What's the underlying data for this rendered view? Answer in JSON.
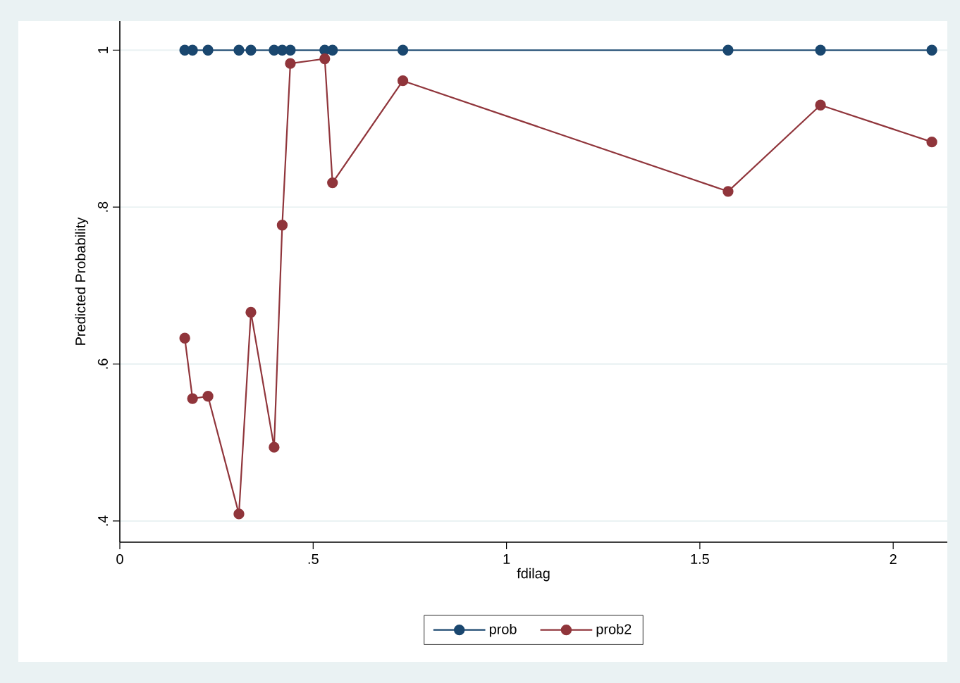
{
  "chart_data": {
    "type": "line",
    "xlabel": "fdilag",
    "ylabel": "Predicted Probability",
    "x": [
      0.168,
      0.188,
      0.228,
      0.308,
      0.339,
      0.399,
      0.42,
      0.441,
      0.53,
      0.55,
      0.732,
      1.573,
      1.812,
      2.1
    ],
    "series": [
      {
        "name": "prob",
        "color": "#1a476f",
        "values": [
          1,
          1,
          1,
          1,
          1,
          1,
          1,
          1,
          1,
          1,
          1,
          1,
          1,
          1
        ]
      },
      {
        "name": "prob2",
        "color": "#90353b",
        "values": [
          0.633,
          0.556,
          0.559,
          0.409,
          0.666,
          0.494,
          0.777,
          0.983,
          0.989,
          0.831,
          0.961,
          0.82,
          0.93,
          0.883
        ]
      }
    ],
    "xlim": [
      0,
      2.14
    ],
    "ylim": [
      0.373,
      1.037
    ],
    "xticks": [
      0,
      {
        "value": 0.5,
        "label": ".5"
      },
      1,
      1.5,
      2
    ],
    "yticks": [
      {
        "value": 0.4,
        "label": ".4"
      },
      {
        "value": 0.6,
        "label": ".6"
      },
      {
        "value": 0.8,
        "label": ".8"
      },
      1
    ],
    "grid": "y",
    "legend": "bottom",
    "marker": "circle",
    "line_style": "solid"
  }
}
